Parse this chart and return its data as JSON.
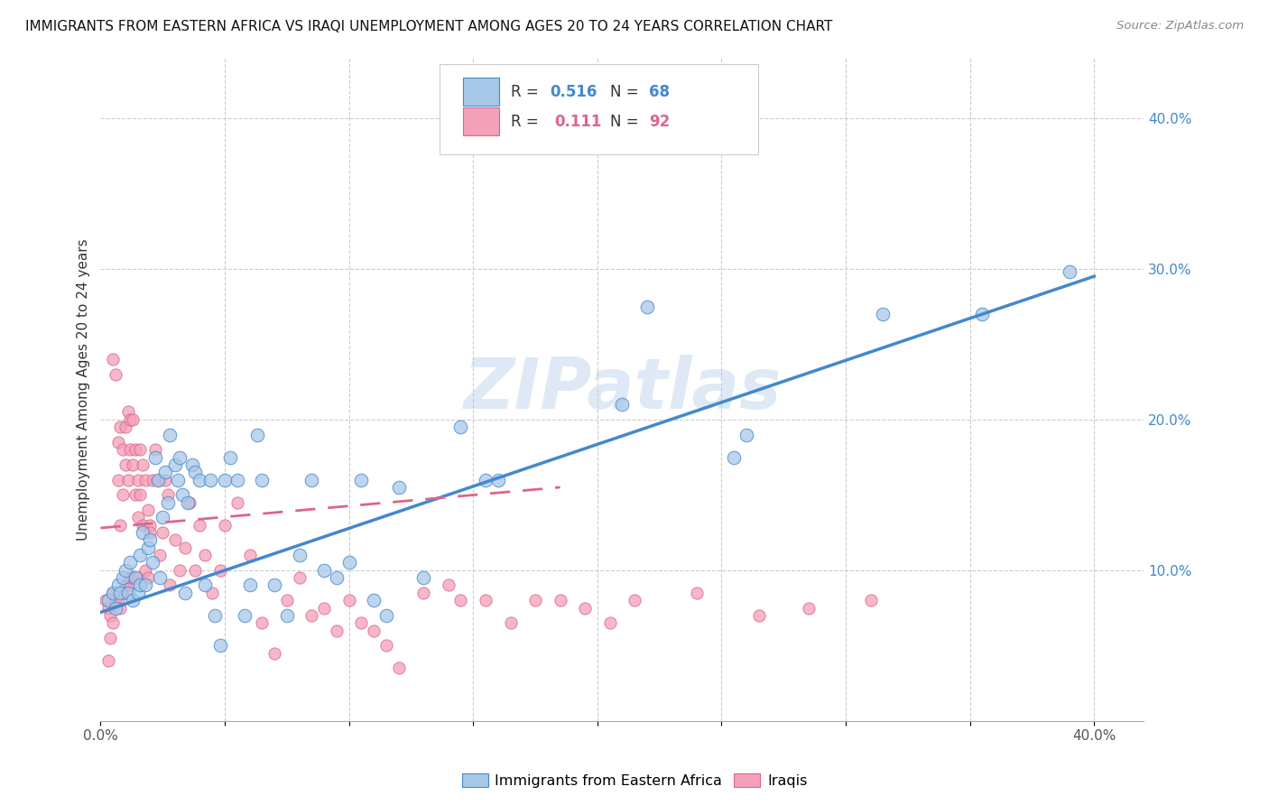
{
  "title": "IMMIGRANTS FROM EASTERN AFRICA VS IRAQI UNEMPLOYMENT AMONG AGES 20 TO 24 YEARS CORRELATION CHART",
  "source": "Source: ZipAtlas.com",
  "ylabel": "Unemployment Among Ages 20 to 24 years",
  "xlim": [
    0.0,
    0.42
  ],
  "ylim": [
    0.0,
    0.44
  ],
  "color_blue": "#a8c8e8",
  "color_pink": "#f4a0b8",
  "color_blue_line": "#4488cc",
  "color_pink_line": "#dd6688",
  "watermark": "ZIPatlas",
  "blue_line_x0": 0.0,
  "blue_line_y0": 0.072,
  "blue_line_x1": 0.4,
  "blue_line_y1": 0.295,
  "pink_line_x0": 0.0,
  "pink_line_y0": 0.128,
  "pink_line_x1": 0.185,
  "pink_line_y1": 0.155,
  "blue_scatter_x": [
    0.003,
    0.005,
    0.006,
    0.007,
    0.008,
    0.009,
    0.01,
    0.011,
    0.012,
    0.013,
    0.014,
    0.015,
    0.016,
    0.016,
    0.017,
    0.018,
    0.019,
    0.02,
    0.021,
    0.022,
    0.023,
    0.024,
    0.025,
    0.026,
    0.027,
    0.028,
    0.03,
    0.031,
    0.032,
    0.033,
    0.034,
    0.035,
    0.037,
    0.038,
    0.04,
    0.042,
    0.044,
    0.046,
    0.048,
    0.05,
    0.052,
    0.055,
    0.058,
    0.06,
    0.063,
    0.065,
    0.07,
    0.075,
    0.08,
    0.085,
    0.09,
    0.095,
    0.1,
    0.105,
    0.11,
    0.115,
    0.12,
    0.13,
    0.145,
    0.155,
    0.16,
    0.21,
    0.22,
    0.255,
    0.26,
    0.315,
    0.355,
    0.39
  ],
  "blue_scatter_y": [
    0.08,
    0.085,
    0.075,
    0.09,
    0.085,
    0.095,
    0.1,
    0.085,
    0.105,
    0.08,
    0.095,
    0.085,
    0.11,
    0.09,
    0.125,
    0.09,
    0.115,
    0.12,
    0.105,
    0.175,
    0.16,
    0.095,
    0.135,
    0.165,
    0.145,
    0.19,
    0.17,
    0.16,
    0.175,
    0.15,
    0.085,
    0.145,
    0.17,
    0.165,
    0.16,
    0.09,
    0.16,
    0.07,
    0.05,
    0.16,
    0.175,
    0.16,
    0.07,
    0.09,
    0.19,
    0.16,
    0.09,
    0.07,
    0.11,
    0.16,
    0.1,
    0.095,
    0.105,
    0.16,
    0.08,
    0.07,
    0.155,
    0.095,
    0.195,
    0.16,
    0.16,
    0.21,
    0.275,
    0.175,
    0.19,
    0.27,
    0.27,
    0.298
  ],
  "pink_scatter_x": [
    0.002,
    0.003,
    0.003,
    0.004,
    0.004,
    0.005,
    0.005,
    0.005,
    0.006,
    0.006,
    0.007,
    0.007,
    0.007,
    0.008,
    0.008,
    0.008,
    0.009,
    0.009,
    0.009,
    0.01,
    0.01,
    0.01,
    0.011,
    0.011,
    0.011,
    0.012,
    0.012,
    0.012,
    0.013,
    0.013,
    0.013,
    0.014,
    0.014,
    0.015,
    0.015,
    0.015,
    0.016,
    0.016,
    0.017,
    0.017,
    0.018,
    0.018,
    0.019,
    0.019,
    0.02,
    0.02,
    0.021,
    0.022,
    0.023,
    0.024,
    0.025,
    0.026,
    0.027,
    0.028,
    0.03,
    0.032,
    0.034,
    0.036,
    0.038,
    0.04,
    0.042,
    0.045,
    0.048,
    0.05,
    0.055,
    0.06,
    0.065,
    0.07,
    0.075,
    0.08,
    0.085,
    0.09,
    0.095,
    0.1,
    0.105,
    0.11,
    0.115,
    0.12,
    0.13,
    0.14,
    0.145,
    0.155,
    0.165,
    0.175,
    0.185,
    0.195,
    0.205,
    0.215,
    0.24,
    0.265,
    0.285,
    0.31
  ],
  "pink_scatter_y": [
    0.08,
    0.075,
    0.04,
    0.07,
    0.055,
    0.24,
    0.085,
    0.065,
    0.23,
    0.08,
    0.185,
    0.16,
    0.08,
    0.195,
    0.13,
    0.075,
    0.18,
    0.15,
    0.085,
    0.17,
    0.195,
    0.09,
    0.16,
    0.205,
    0.09,
    0.18,
    0.2,
    0.095,
    0.2,
    0.17,
    0.095,
    0.18,
    0.15,
    0.16,
    0.135,
    0.095,
    0.18,
    0.15,
    0.17,
    0.13,
    0.16,
    0.1,
    0.14,
    0.095,
    0.13,
    0.125,
    0.16,
    0.18,
    0.16,
    0.11,
    0.125,
    0.16,
    0.15,
    0.09,
    0.12,
    0.1,
    0.115,
    0.145,
    0.1,
    0.13,
    0.11,
    0.085,
    0.1,
    0.13,
    0.145,
    0.11,
    0.065,
    0.045,
    0.08,
    0.095,
    0.07,
    0.075,
    0.06,
    0.08,
    0.065,
    0.06,
    0.05,
    0.035,
    0.085,
    0.09,
    0.08,
    0.08,
    0.065,
    0.08,
    0.08,
    0.075,
    0.065,
    0.08,
    0.085,
    0.07,
    0.075,
    0.08
  ]
}
